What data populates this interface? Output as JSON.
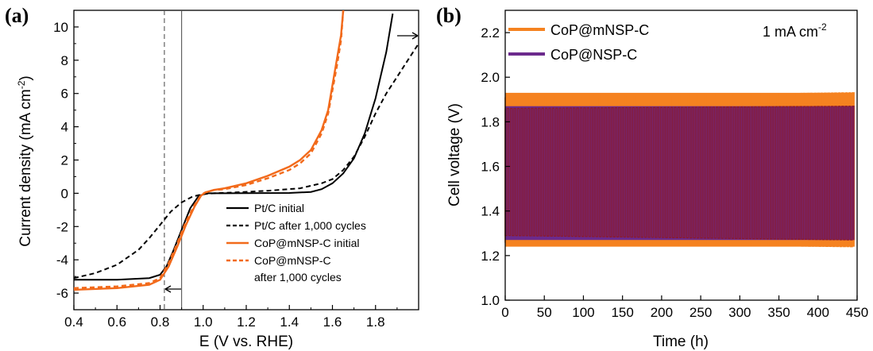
{
  "chart_data": [
    {
      "panel_label": "(a)",
      "type": "line",
      "xlabel": "E (V vs. RHE)",
      "ylabel_main": "Current density (mA cm",
      "ylabel_sup": "-2",
      "ylabel_close": ")",
      "xlim": [
        0.4,
        2.0
      ],
      "ylim": [
        -7,
        11
      ],
      "xticks": [
        0.4,
        0.6,
        0.8,
        1.0,
        1.2,
        1.4,
        1.6,
        1.8
      ],
      "yticks": [
        -6,
        -4,
        -2,
        0,
        2,
        4,
        6,
        8,
        10
      ],
      "tick_labels_x": [
        "0.4",
        "0.6",
        "0.8",
        "1.0",
        "1.2",
        "1.4",
        "1.6",
        "1.8"
      ],
      "tick_labels_y": [
        "-6",
        "-4",
        "-2",
        "0",
        "2",
        "4",
        "6",
        "8",
        "10"
      ],
      "vertical_markers": [
        {
          "x": 0.82,
          "style": "dashed"
        },
        {
          "x": 0.9,
          "style": "solid"
        }
      ],
      "series": [
        {
          "name": "Pt/C initial",
          "color": "#000000",
          "dash": "solid",
          "points": [
            [
              0.4,
              -5.2
            ],
            [
              0.6,
              -5.2
            ],
            [
              0.75,
              -5.1
            ],
            [
              0.8,
              -4.9
            ],
            [
              0.83,
              -4.4
            ],
            [
              0.86,
              -3.5
            ],
            [
              0.9,
              -2.2
            ],
            [
              0.94,
              -0.9
            ],
            [
              0.98,
              -0.15
            ],
            [
              1.02,
              0
            ],
            [
              1.1,
              0
            ],
            [
              1.4,
              0.02
            ],
            [
              1.5,
              0.08
            ],
            [
              1.55,
              0.25
            ],
            [
              1.6,
              0.6
            ],
            [
              1.65,
              1.2
            ],
            [
              1.7,
              2.1
            ],
            [
              1.75,
              3.6
            ],
            [
              1.8,
              5.7
            ],
            [
              1.85,
              8.5
            ],
            [
              1.88,
              10.8
            ]
          ]
        },
        {
          "name": "Pt/C after 1,000 cycles",
          "color": "#000000",
          "dash": "dashed",
          "points": [
            [
              0.4,
              -5.1
            ],
            [
              0.5,
              -4.8
            ],
            [
              0.6,
              -4.3
            ],
            [
              0.7,
              -3.4
            ],
            [
              0.75,
              -2.7
            ],
            [
              0.8,
              -1.9
            ],
            [
              0.85,
              -1.1
            ],
            [
              0.9,
              -0.55
            ],
            [
              0.95,
              -0.2
            ],
            [
              1.0,
              -0.05
            ],
            [
              1.05,
              0
            ],
            [
              1.15,
              0.05
            ],
            [
              1.3,
              0.15
            ],
            [
              1.45,
              0.3
            ],
            [
              1.55,
              0.6
            ],
            [
              1.6,
              0.85
            ],
            [
              1.65,
              1.4
            ],
            [
              1.7,
              2.2
            ],
            [
              1.75,
              3.4
            ],
            [
              1.8,
              4.8
            ],
            [
              1.85,
              6.0
            ],
            [
              1.9,
              7.0
            ],
            [
              1.95,
              8.0
            ],
            [
              2.0,
              9.0
            ]
          ]
        },
        {
          "name": "CoP@mNSP-C initial",
          "color": "#f26a1b",
          "dash": "solid",
          "points": [
            [
              0.4,
              -5.8
            ],
            [
              0.6,
              -5.7
            ],
            [
              0.75,
              -5.5
            ],
            [
              0.8,
              -5.2
            ],
            [
              0.84,
              -4.4
            ],
            [
              0.88,
              -3.2
            ],
            [
              0.92,
              -1.9
            ],
            [
              0.96,
              -0.8
            ],
            [
              0.99,
              -0.15
            ],
            [
              1.01,
              0.05
            ],
            [
              1.05,
              0.2
            ],
            [
              1.1,
              0.3
            ],
            [
              1.2,
              0.6
            ],
            [
              1.3,
              1.05
            ],
            [
              1.4,
              1.6
            ],
            [
              1.45,
              2.0
            ],
            [
              1.5,
              2.6
            ],
            [
              1.55,
              3.8
            ],
            [
              1.58,
              5.0
            ],
            [
              1.6,
              6.5
            ],
            [
              1.62,
              8.0
            ],
            [
              1.64,
              9.5
            ],
            [
              1.65,
              11
            ]
          ]
        },
        {
          "name": "CoP@mNSP-C after 1,000 cycles",
          "color": "#f26a1b",
          "dash": "dashed",
          "points": [
            [
              0.4,
              -5.7
            ],
            [
              0.6,
              -5.6
            ],
            [
              0.75,
              -5.4
            ],
            [
              0.8,
              -5.1
            ],
            [
              0.84,
              -4.2
            ],
            [
              0.88,
              -3.0
            ],
            [
              0.92,
              -1.7
            ],
            [
              0.96,
              -0.7
            ],
            [
              0.99,
              -0.1
            ],
            [
              1.01,
              0.05
            ],
            [
              1.05,
              0.2
            ],
            [
              1.1,
              0.25
            ],
            [
              1.2,
              0.5
            ],
            [
              1.3,
              0.9
            ],
            [
              1.4,
              1.4
            ],
            [
              1.45,
              1.8
            ],
            [
              1.5,
              2.4
            ],
            [
              1.55,
              3.6
            ],
            [
              1.58,
              4.8
            ],
            [
              1.6,
              6.2
            ],
            [
              1.62,
              7.6
            ],
            [
              1.64,
              9.2
            ],
            [
              1.65,
              11
            ]
          ]
        }
      ],
      "legend": {
        "placement": "lower-right",
        "items": [
          {
            "label": "Pt/C initial",
            "color": "#000000",
            "dash": "solid"
          },
          {
            "label": "Pt/C after 1,000 cycles",
            "color": "#000000",
            "dash": "dashed"
          },
          {
            "label": "CoP@mNSP-C initial",
            "color": "#f26a1b",
            "dash": "solid"
          },
          {
            "label": "CoP@mNSP-C",
            "label2": "after 1,000 cycles",
            "color": "#f26a1b",
            "dash": "dashed"
          }
        ]
      }
    },
    {
      "panel_label": "(b)",
      "type": "line",
      "xlabel": "Time (h)",
      "ylabel": "Cell voltage (V)",
      "xlim": [
        0,
        450
      ],
      "ylim": [
        1.0,
        2.3
      ],
      "xticks": [
        0,
        50,
        100,
        150,
        200,
        250,
        300,
        350,
        400,
        450
      ],
      "yticks": [
        1.0,
        1.2,
        1.4,
        1.6,
        1.8,
        2.0,
        2.2
      ],
      "tick_labels_x": [
        "0",
        "50",
        "100",
        "150",
        "200",
        "250",
        "300",
        "350",
        "400",
        "450"
      ],
      "tick_labels_y": [
        "1.0",
        "1.2",
        "1.4",
        "1.6",
        "1.8",
        "2.0",
        "2.2"
      ],
      "cycles": 100,
      "series": [
        {
          "name": "CoP@mNSP-C",
          "color": "#f58220",
          "high_start": 1.91,
          "high_end": 1.93,
          "low_start": 1.26,
          "low_end": 1.24
        },
        {
          "name": "CoP@NSP-C",
          "color": "#6c2a8c",
          "edge_color": "#8b1a2b",
          "high_start": 1.86,
          "high_end": 1.87,
          "low_start": 1.29,
          "low_end": 1.27
        }
      ],
      "annotation_main": "1 mA cm",
      "annotation_sup": "-2",
      "legend": {
        "placement": "top-left"
      }
    }
  ]
}
